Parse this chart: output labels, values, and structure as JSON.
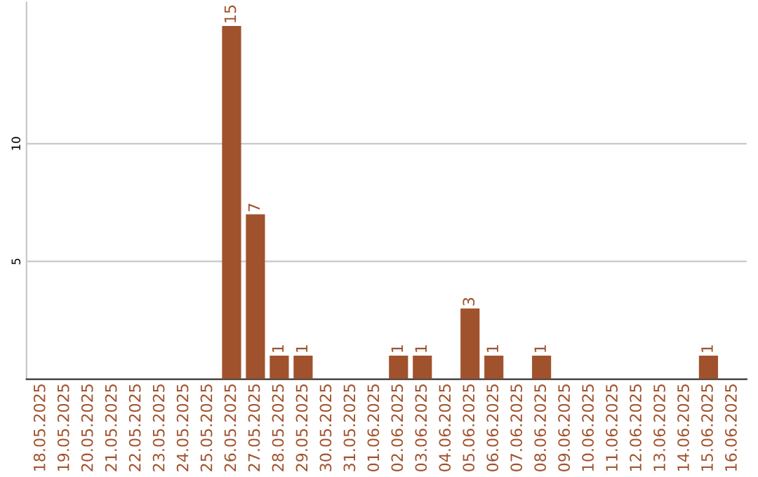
{
  "chart_data": {
    "type": "bar",
    "categories": [
      "18.05.2025",
      "19.05.2025",
      "20.05.2025",
      "21.05.2025",
      "22.05.2025",
      "23.05.2025",
      "24.05.2025",
      "25.05.2025",
      "26.05.2025",
      "27.05.2025",
      "28.05.2025",
      "29.05.2025",
      "30.05.2025",
      "31.05.2025",
      "01.06.2025",
      "02.06.2025",
      "03.06.2025",
      "04.06.2025",
      "05.06.2025",
      "06.06.2025",
      "07.06.2025",
      "08.06.2025",
      "09.06.2025",
      "10.06.2025",
      "11.06.2025",
      "12.06.2025",
      "13.06.2025",
      "14.06.2025",
      "15.06.2025",
      "16.06.2025"
    ],
    "values": [
      0,
      0,
      0,
      0,
      0,
      0,
      0,
      0,
      15,
      7,
      1,
      1,
      0,
      0,
      0,
      1,
      1,
      0,
      3,
      1,
      0,
      1,
      0,
      0,
      0,
      0,
      0,
      0,
      1,
      0
    ],
    "value_labels": [
      null,
      null,
      null,
      null,
      null,
      null,
      null,
      null,
      "15",
      "7",
      "1",
      "1",
      null,
      null,
      null,
      "1",
      "1",
      null,
      "3",
      "1",
      null,
      "1",
      null,
      null,
      null,
      null,
      null,
      null,
      "1",
      null
    ],
    "color": "#a0522d",
    "ylim": [
      0,
      16
    ],
    "yticks": [
      5,
      10
    ],
    "grid": "y",
    "legend": false
  }
}
